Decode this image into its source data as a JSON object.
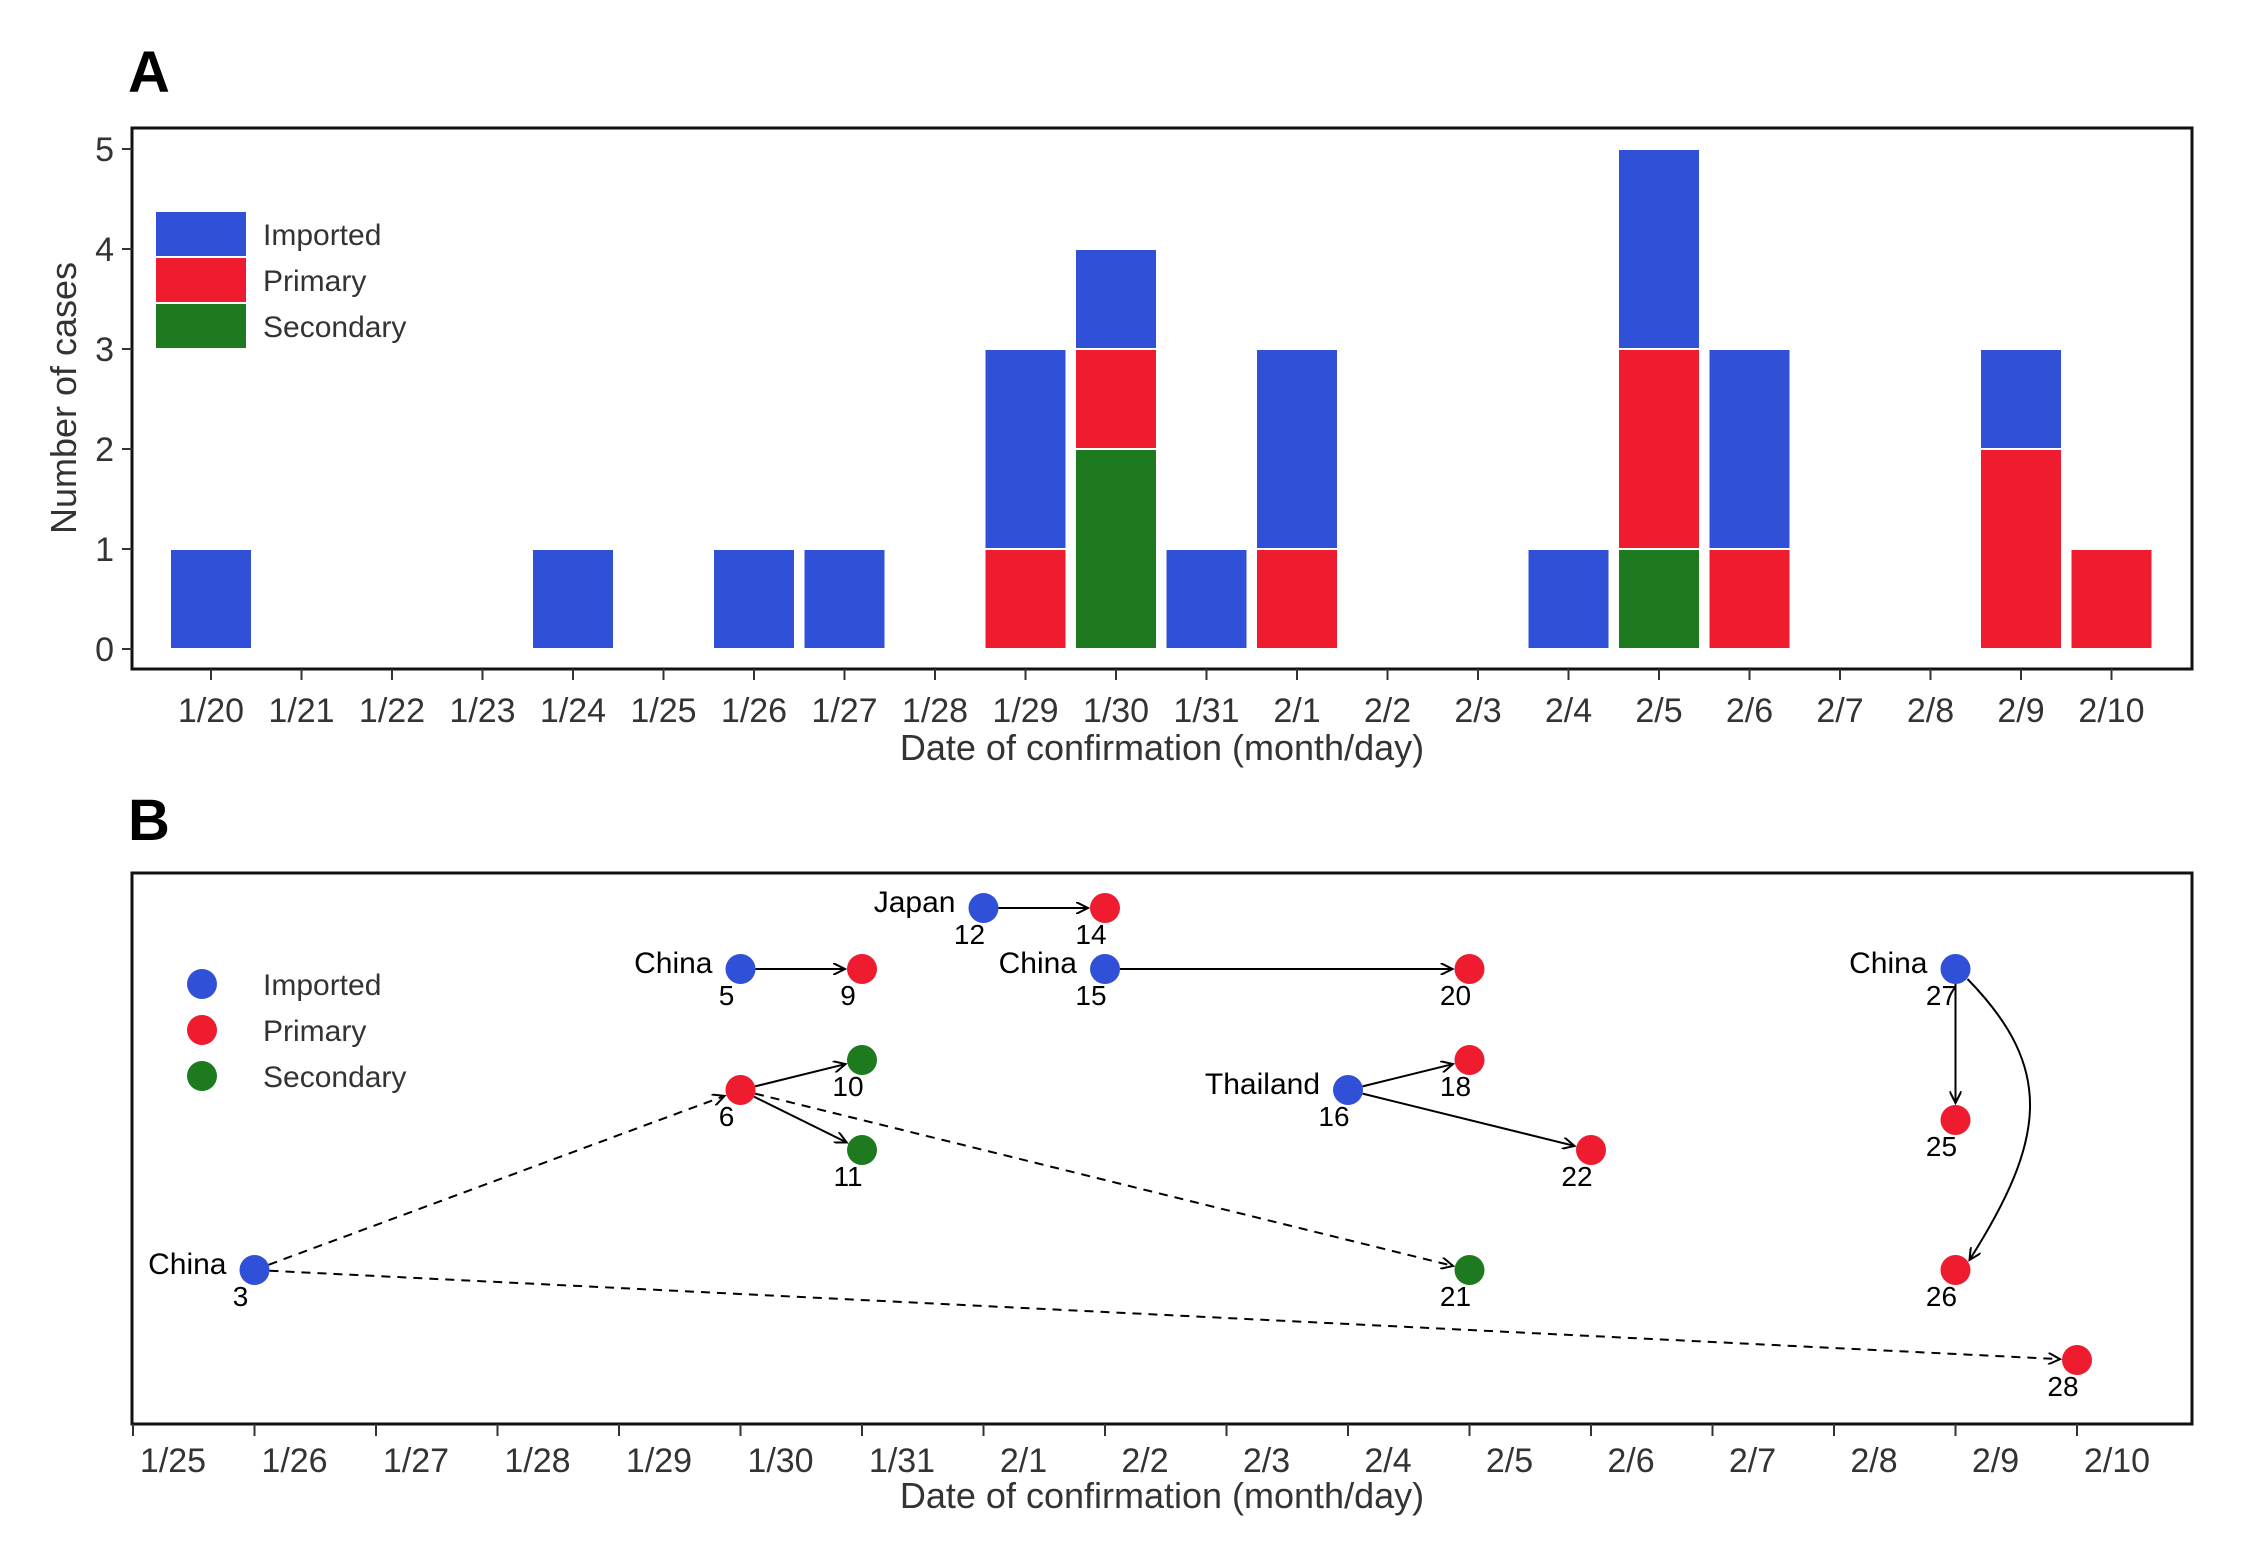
{
  "colors": {
    "imported": "#3050d8",
    "primary": "#ee1c2e",
    "secondary": "#1e7a1e"
  },
  "chart_data": [
    {
      "panel": "A",
      "type": "bar",
      "stacked": true,
      "xlabel": "Date of confirmation (month/day)",
      "ylabel": "Number of cases",
      "ylim": [
        0,
        5
      ],
      "yticks": [
        0,
        1,
        2,
        3,
        4,
        5
      ],
      "categories": [
        "1/20",
        "1/21",
        "1/22",
        "1/23",
        "1/24",
        "1/25",
        "1/26",
        "1/27",
        "1/28",
        "1/29",
        "1/30",
        "1/31",
        "2/1",
        "2/2",
        "2/3",
        "2/4",
        "2/5",
        "2/6",
        "2/7",
        "2/8",
        "2/9",
        "2/10"
      ],
      "legend_position": "top-left",
      "series": [
        {
          "name": "Secondary",
          "key": "secondary",
          "values": [
            0,
            0,
            0,
            0,
            0,
            0,
            0,
            0,
            0,
            0,
            2,
            0,
            0,
            0,
            0,
            0,
            1,
            0,
            0,
            0,
            0,
            0
          ]
        },
        {
          "name": "Primary",
          "key": "primary",
          "values": [
            0,
            0,
            0,
            0,
            0,
            0,
            0,
            0,
            0,
            1,
            1,
            0,
            1,
            0,
            0,
            0,
            2,
            1,
            0,
            0,
            2,
            1
          ]
        },
        {
          "name": "Imported",
          "key": "imported",
          "values": [
            1,
            0,
            0,
            0,
            1,
            0,
            1,
            1,
            0,
            2,
            1,
            1,
            2,
            0,
            0,
            1,
            2,
            2,
            0,
            0,
            1,
            0
          ]
        }
      ],
      "legend_order": [
        "Imported",
        "Primary",
        "Secondary"
      ]
    },
    {
      "panel": "B",
      "type": "scatter",
      "xlabel": "Date of confirmation (month/day)",
      "xticks": [
        "1/25",
        "1/26",
        "1/27",
        "1/28",
        "1/29",
        "1/30",
        "1/31",
        "2/1",
        "2/2",
        "2/3",
        "2/4",
        "2/5",
        "2/6",
        "2/7",
        "2/8",
        "2/9",
        "2/10"
      ],
      "legend": [
        "Imported",
        "Primary",
        "Secondary"
      ],
      "legend_position": "top-left",
      "nodes": [
        {
          "id": "3",
          "date": "1/26",
          "type": "imported",
          "source": "China"
        },
        {
          "id": "5",
          "date": "1/30",
          "type": "imported",
          "source": "China"
        },
        {
          "id": "6",
          "date": "1/30",
          "type": "primary",
          "source": ""
        },
        {
          "id": "9",
          "date": "1/31",
          "type": "primary",
          "source": ""
        },
        {
          "id": "10",
          "date": "1/31",
          "type": "secondary",
          "source": ""
        },
        {
          "id": "11",
          "date": "1/31",
          "type": "secondary",
          "source": ""
        },
        {
          "id": "12",
          "date": "2/1",
          "type": "imported",
          "source": "Japan"
        },
        {
          "id": "14",
          "date": "2/2",
          "type": "primary",
          "source": ""
        },
        {
          "id": "15",
          "date": "2/2",
          "type": "imported",
          "source": "China"
        },
        {
          "id": "16",
          "date": "2/4",
          "type": "imported",
          "source": "Thailand"
        },
        {
          "id": "18",
          "date": "2/5",
          "type": "primary",
          "source": ""
        },
        {
          "id": "20",
          "date": "2/5",
          "type": "primary",
          "source": ""
        },
        {
          "id": "21",
          "date": "2/5",
          "type": "secondary",
          "source": ""
        },
        {
          "id": "22",
          "date": "2/6",
          "type": "primary",
          "source": ""
        },
        {
          "id": "25",
          "date": "2/9",
          "type": "primary",
          "source": ""
        },
        {
          "id": "26",
          "date": "2/9",
          "type": "primary",
          "source": ""
        },
        {
          "id": "27",
          "date": "2/9",
          "type": "imported",
          "source": "China"
        },
        {
          "id": "28",
          "date": "2/10",
          "type": "primary",
          "source": ""
        }
      ],
      "links": [
        {
          "from": "5",
          "to": "9",
          "style": "solid"
        },
        {
          "from": "12",
          "to": "14",
          "style": "solid"
        },
        {
          "from": "15",
          "to": "20",
          "style": "solid"
        },
        {
          "from": "6",
          "to": "10",
          "style": "solid"
        },
        {
          "from": "6",
          "to": "11",
          "style": "solid"
        },
        {
          "from": "16",
          "to": "18",
          "style": "solid"
        },
        {
          "from": "16",
          "to": "22",
          "style": "solid"
        },
        {
          "from": "27",
          "to": "25",
          "style": "solid"
        },
        {
          "from": "27",
          "to": "26",
          "style": "solid-curved"
        },
        {
          "from": "3",
          "to": "6",
          "style": "dashed"
        },
        {
          "from": "6",
          "to": "21",
          "style": "dashed"
        },
        {
          "from": "3",
          "to": "28",
          "style": "dashed"
        }
      ]
    }
  ],
  "panel_labels": [
    "A",
    "B"
  ]
}
